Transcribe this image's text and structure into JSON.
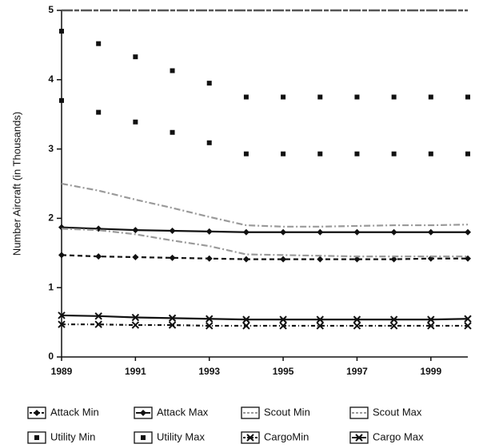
{
  "chart_data": {
    "type": "line",
    "y_label": "Number Aircraft (in Thousands)",
    "x": [
      1989,
      1990,
      1991,
      1992,
      1993,
      1994,
      1995,
      1996,
      1997,
      1998,
      1999,
      2000
    ],
    "xlim": [
      1989,
      2000
    ],
    "xticks": [
      1989,
      1991,
      1993,
      1995,
      1997,
      1999
    ],
    "ylim": [
      0,
      5
    ],
    "yticks": [
      0,
      1,
      2,
      3,
      4,
      5
    ],
    "series": [
      {
        "name": "Attack Min",
        "color": "#111111",
        "dash": "6,4",
        "marker": "diamond",
        "line": true,
        "values": [
          1.47,
          1.45,
          1.44,
          1.43,
          1.42,
          1.41,
          1.41,
          1.41,
          1.41,
          1.41,
          1.42,
          1.42
        ]
      },
      {
        "name": "Attack Max",
        "color": "#111111",
        "dash": "none",
        "marker": "diamond",
        "line": true,
        "values": [
          1.87,
          1.85,
          1.83,
          1.82,
          1.81,
          1.8,
          1.8,
          1.8,
          1.8,
          1.8,
          1.8,
          1.8
        ]
      },
      {
        "name": "Scout Min",
        "color": "#9a9a9a",
        "dash": "8,3,2,3",
        "marker": "none",
        "line": true,
        "values": [
          1.85,
          1.83,
          1.77,
          1.68,
          1.6,
          1.48,
          1.47,
          1.46,
          1.45,
          1.45,
          1.45,
          1.45
        ]
      },
      {
        "name": "Scout Max",
        "color": "#9a9a9a",
        "dash": "8,3,2,3",
        "marker": "none",
        "line": true,
        "values": [
          2.5,
          2.4,
          2.27,
          2.15,
          2.02,
          1.9,
          1.88,
          1.88,
          1.89,
          1.9,
          1.9,
          1.91
        ]
      },
      {
        "name": "Utility Min",
        "color": "#111111",
        "dash": "none",
        "marker": "square",
        "line": false,
        "values": [
          3.7,
          3.53,
          3.39,
          3.24,
          3.09,
          2.93,
          2.93,
          2.93,
          2.93,
          2.93,
          2.93,
          2.93
        ]
      },
      {
        "name": "Utility Max",
        "color": "#111111",
        "dash": "none",
        "marker": "square",
        "line": false,
        "values": [
          4.7,
          4.52,
          4.33,
          4.13,
          3.95,
          3.75,
          3.75,
          3.75,
          3.75,
          3.75,
          3.75,
          3.75
        ]
      },
      {
        "name": "CargoMin",
        "color": "#111111",
        "dash": "5,3,1,3",
        "marker": "x",
        "line": true,
        "values": [
          0.47,
          0.47,
          0.46,
          0.46,
          0.45,
          0.45,
          0.45,
          0.45,
          0.45,
          0.45,
          0.45,
          0.45
        ]
      },
      {
        "name": "Cargo Max",
        "color": "#111111",
        "dash": "none",
        "marker": "x",
        "line": true,
        "values": [
          0.6,
          0.59,
          0.57,
          0.56,
          0.55,
          0.54,
          0.54,
          0.54,
          0.54,
          0.54,
          0.54,
          0.55
        ]
      }
    ]
  }
}
